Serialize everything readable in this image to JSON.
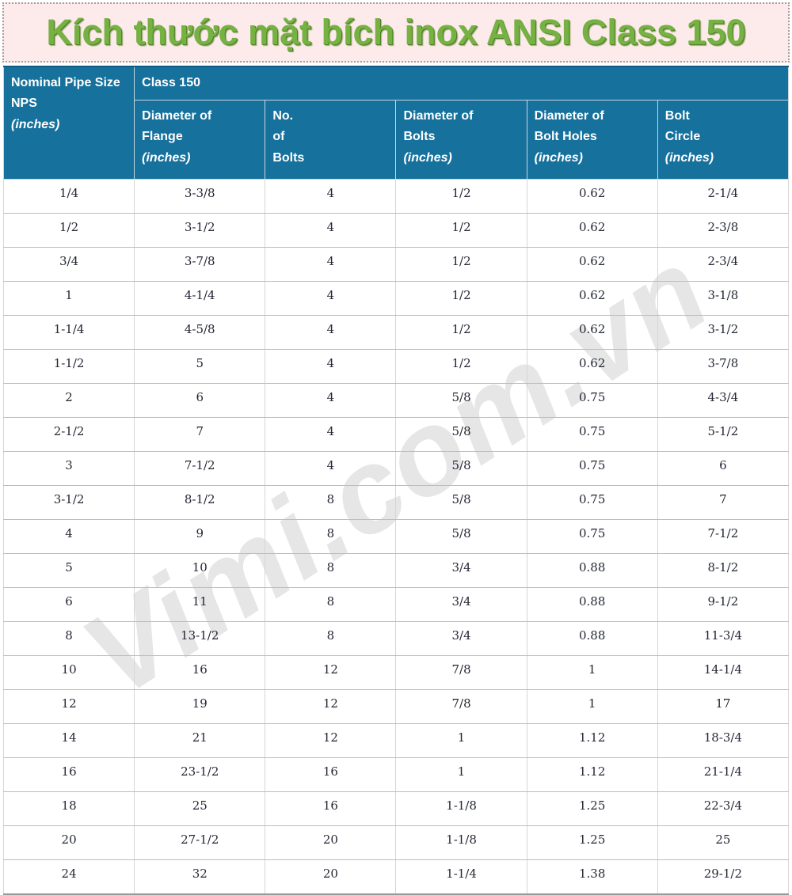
{
  "title": {
    "text": "Kích thước mặt bích inox ANSI Class 150"
  },
  "watermark": {
    "text": "Vimi.com.vn"
  },
  "colors": {
    "header_bg": "#16719d",
    "title_bg": "#fdeaea",
    "title_text": "#76b243",
    "data_text": "#232733",
    "watermark": "#bfbfbf"
  },
  "table": {
    "nps_header": {
      "lines": [
        "Nominal Pipe Size",
        "NPS"
      ],
      "unit": "(inches)"
    },
    "class_header": "Class 150",
    "sub_headers": [
      {
        "name": "diameter-of-flange",
        "lines": [
          "Diameter of",
          "Flange"
        ],
        "unit": "(inches)"
      },
      {
        "name": "no-of-bolts",
        "lines": [
          "No.",
          "of",
          "Bolts"
        ],
        "unit": ""
      },
      {
        "name": "diameter-of-bolts",
        "lines": [
          "Diameter of",
          "Bolts"
        ],
        "unit": "(inches)"
      },
      {
        "name": "diameter-of-bolt-holes",
        "lines": [
          "Diameter of",
          "Bolt Holes"
        ],
        "unit": "(inches)"
      },
      {
        "name": "bolt-circle",
        "lines": [
          "Bolt",
          "Circle"
        ],
        "unit": "(inches)"
      }
    ],
    "rows": [
      [
        "1/4",
        "3-3/8",
        "4",
        "1/2",
        "0.62",
        "2-1/4"
      ],
      [
        "1/2",
        "3-1/2",
        "4",
        "1/2",
        "0.62",
        "2-3/8"
      ],
      [
        "3/4",
        "3-7/8",
        "4",
        "1/2",
        "0.62",
        "2-3/4"
      ],
      [
        "1",
        "4-1/4",
        "4",
        "1/2",
        "0.62",
        "3-1/8"
      ],
      [
        "1-1/4",
        "4-5/8",
        "4",
        "1/2",
        "0.62",
        "3-1/2"
      ],
      [
        "1-1/2",
        "5",
        "4",
        "1/2",
        "0.62",
        "3-7/8"
      ],
      [
        "2",
        "6",
        "4",
        "5/8",
        "0.75",
        "4-3/4"
      ],
      [
        "2-1/2",
        "7",
        "4",
        "5/8",
        "0.75",
        "5-1/2"
      ],
      [
        "3",
        "7-1/2",
        "4",
        "5/8",
        "0.75",
        "6"
      ],
      [
        "3-1/2",
        "8-1/2",
        "8",
        "5/8",
        "0.75",
        "7"
      ],
      [
        "4",
        "9",
        "8",
        "5/8",
        "0.75",
        "7-1/2"
      ],
      [
        "5",
        "10",
        "8",
        "3/4",
        "0.88",
        "8-1/2"
      ],
      [
        "6",
        "11",
        "8",
        "3/4",
        "0.88",
        "9-1/2"
      ],
      [
        "8",
        "13-1/2",
        "8",
        "3/4",
        "0.88",
        "11-3/4"
      ],
      [
        "10",
        "16",
        "12",
        "7/8",
        "1",
        "14-1/4"
      ],
      [
        "12",
        "19",
        "12",
        "7/8",
        "1",
        "17"
      ],
      [
        "14",
        "21",
        "12",
        "1",
        "1.12",
        "18-3/4"
      ],
      [
        "16",
        "23-1/2",
        "16",
        "1",
        "1.12",
        "21-1/4"
      ],
      [
        "18",
        "25",
        "16",
        "1-1/8",
        "1.25",
        "22-3/4"
      ],
      [
        "20",
        "27-1/2",
        "20",
        "1-1/8",
        "1.25",
        "25"
      ],
      [
        "24",
        "32",
        "20",
        "1-1/4",
        "1.38",
        "29-1/2"
      ]
    ]
  }
}
